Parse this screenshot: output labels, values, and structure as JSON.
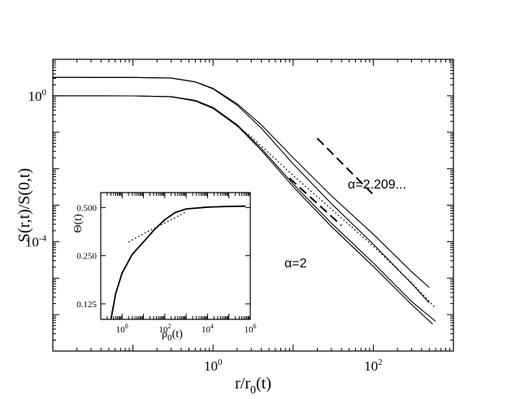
{
  "chart_data": [
    {
      "type": "line",
      "xlabel": "r/r_0(t)",
      "ylabel": "S(r,t)/S(0,t)",
      "xscale": "log",
      "yscale": "log",
      "xlim": [
        0.01,
        1000
      ],
      "ylim": [
        1e-07,
        10
      ],
      "x_ticks": [
        {
          "base": "10",
          "exp": "0",
          "value": 1
        },
        {
          "base": "10",
          "exp": "2",
          "value": 100
        }
      ],
      "y_ticks": [
        {
          "base": "10",
          "exp": "0",
          "value": 1
        },
        {
          "base": "10",
          "exp": "-4",
          "value": 0.0001
        }
      ],
      "series": [
        {
          "group": "upper",
          "style": "solid",
          "points": [
            [
              0.01,
              3.2
            ],
            [
              0.1,
              3.19
            ],
            [
              0.3,
              3.05
            ],
            [
              0.6,
              2.4
            ],
            [
              1,
              1.55
            ],
            [
              2,
              0.55
            ],
            [
              4,
              0.13
            ],
            [
              10,
              0.0135
            ],
            [
              30,
              0.0011
            ],
            [
              100,
              8.5e-05
            ],
            [
              300,
              7.2e-06
            ],
            [
              500,
              2.1e-06
            ]
          ]
        },
        {
          "group": "upper",
          "style": "solid",
          "points": [
            [
              0.01,
              3.2
            ],
            [
              0.1,
              3.19
            ],
            [
              0.3,
              3.05
            ],
            [
              0.6,
              2.42
            ],
            [
              1,
              1.6
            ],
            [
              2,
              0.6
            ],
            [
              4,
              0.16
            ],
            [
              10,
              0.02
            ],
            [
              30,
              0.0018
            ],
            [
              100,
              0.00016
            ],
            [
              300,
              1.5e-05
            ],
            [
              500,
              5.5e-06
            ]
          ]
        },
        {
          "group": "lower",
          "style": "solid",
          "points": [
            [
              0.01,
              1.0
            ],
            [
              0.1,
              0.995
            ],
            [
              0.3,
              0.94
            ],
            [
              0.6,
              0.72
            ],
            [
              1,
              0.45
            ],
            [
              2,
              0.15
            ],
            [
              4,
              0.032
            ],
            [
              10,
              0.0032
            ],
            [
              30,
              0.00026
            ],
            [
              100,
              2.1e-05
            ],
            [
              300,
              1.9e-06
            ],
            [
              550,
              5.5e-07
            ]
          ]
        },
        {
          "group": "lower",
          "style": "solid",
          "points": [
            [
              0.01,
              1.0
            ],
            [
              0.1,
              0.995
            ],
            [
              0.3,
              0.95
            ],
            [
              0.6,
              0.75
            ],
            [
              1,
              0.48
            ],
            [
              2,
              0.16
            ],
            [
              4,
              0.036
            ],
            [
              10,
              0.0038
            ],
            [
              30,
              0.00032
            ],
            [
              100,
              2.6e-05
            ],
            [
              300,
              2.3e-06
            ],
            [
              600,
              6.5e-07
            ]
          ]
        },
        {
          "group": "lower",
          "style": "dotted",
          "points": [
            [
              0.3,
              0.95
            ],
            [
              0.6,
              0.74
            ],
            [
              1,
              0.47
            ],
            [
              3,
              0.075
            ],
            [
              10,
              0.0065
            ],
            [
              30,
              0.00078
            ],
            [
              100,
              7.5e-05
            ],
            [
              300,
              7.5e-06
            ],
            [
              600,
              1.5e-06
            ]
          ]
        }
      ],
      "reference_lines": [
        {
          "label": "α=2.209...",
          "slope": -2.209,
          "x_start": 20,
          "x_end": 100,
          "y_start": 0.068
        },
        {
          "label": "α=2",
          "slope": -2,
          "x_start": 9,
          "x_end": 40,
          "y_start": 0.0055
        }
      ]
    },
    {
      "type": "line",
      "inset": true,
      "xlabel": "ρ_0(t)",
      "ylabel": "Θ(t)",
      "xscale": "log",
      "yscale": "log",
      "xlim": [
        0.1,
        1000000
      ],
      "ylim": [
        0.1,
        0.62
      ],
      "x_ticks": [
        {
          "base": "10",
          "exp": "0",
          "value": 1
        },
        {
          "base": "10",
          "exp": "2",
          "value": 100
        },
        {
          "base": "10",
          "exp": "4",
          "value": 10000
        },
        {
          "base": "10",
          "exp": "6",
          "value": 1000000
        }
      ],
      "y_ticks": [
        {
          "label": "0.125",
          "value": 0.125
        },
        {
          "label": "0.250",
          "value": 0.25
        },
        {
          "label": "0.500",
          "value": 0.5
        }
      ],
      "series": [
        {
          "style": "solid",
          "points": [
            [
              0.3,
              0.1
            ],
            [
              0.5,
              0.145
            ],
            [
              1,
              0.195
            ],
            [
              3,
              0.255
            ],
            [
              10,
              0.305
            ],
            [
              30,
              0.36
            ],
            [
              100,
              0.42
            ],
            [
              300,
              0.465
            ],
            [
              1000,
              0.49
            ],
            [
              10000,
              0.503
            ],
            [
              100000,
              0.508
            ],
            [
              600000,
              0.51
            ]
          ]
        },
        {
          "style": "dotted",
          "points": [
            [
              2,
              0.305
            ],
            [
              20,
              0.36
            ],
            [
              200,
              0.42
            ],
            [
              1000,
              0.47
            ]
          ]
        }
      ]
    }
  ]
}
